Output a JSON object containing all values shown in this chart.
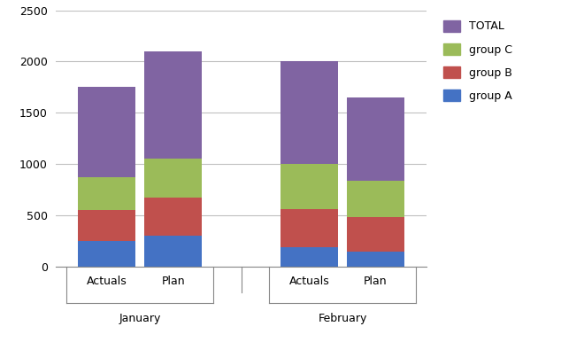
{
  "months": [
    "January",
    "February"
  ],
  "bar_labels": [
    "Actuals",
    "Plan"
  ],
  "seg_A": [
    250,
    300,
    190,
    150
  ],
  "seg_B": [
    300,
    375,
    375,
    330
  ],
  "seg_C": [
    325,
    375,
    435,
    360
  ],
  "seg_TOTAL": [
    875,
    1050,
    1000,
    810
  ],
  "totals": [
    1750,
    2100,
    2000,
    1650
  ],
  "colors": {
    "group_A": "#4472C4",
    "group_B": "#C0504D",
    "group_C": "#9BBB59",
    "TOTAL": "#8064A2"
  },
  "ylim": [
    0,
    2500
  ],
  "yticks": [
    0,
    500,
    1000,
    1500,
    2000,
    2500
  ],
  "background_color": "#FFFFFF",
  "grid_color": "#C0C0C0"
}
